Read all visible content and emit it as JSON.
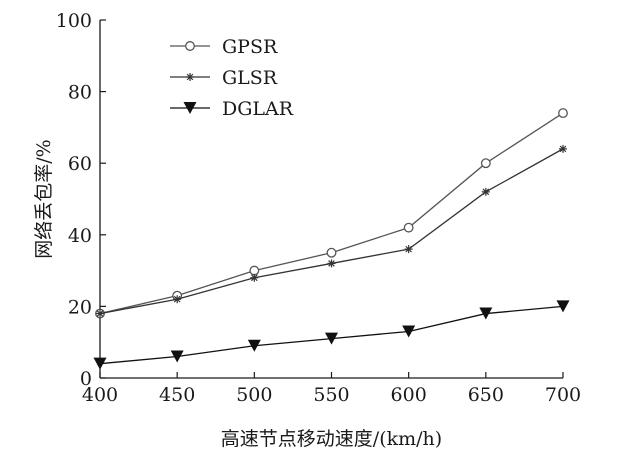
{
  "chart_data": {
    "type": "line",
    "title": "",
    "xlabel": "高速节点移动速度/(km/h)",
    "ylabel": "网络丢包率/%",
    "x": [
      400,
      450,
      500,
      550,
      600,
      650,
      700
    ],
    "xlim": [
      400,
      700
    ],
    "ylim": [
      0,
      100
    ],
    "xticks": [
      400,
      450,
      500,
      550,
      600,
      650,
      700
    ],
    "yticks": [
      0,
      20,
      40,
      60,
      80,
      100
    ],
    "grid": false,
    "legend_position": "top-left",
    "series": [
      {
        "name": "GPSR",
        "marker": "open-circle",
        "color": "#555555",
        "values": [
          18,
          23,
          30,
          35,
          42,
          60,
          74
        ]
      },
      {
        "name": "GLSR",
        "marker": "star",
        "color": "#333333",
        "values": [
          18,
          22,
          28,
          32,
          36,
          52,
          64
        ]
      },
      {
        "name": "DGLAR",
        "marker": "filled-triangle-down",
        "color": "#111111",
        "values": [
          4,
          6,
          9,
          11,
          13,
          18,
          20
        ]
      }
    ]
  }
}
